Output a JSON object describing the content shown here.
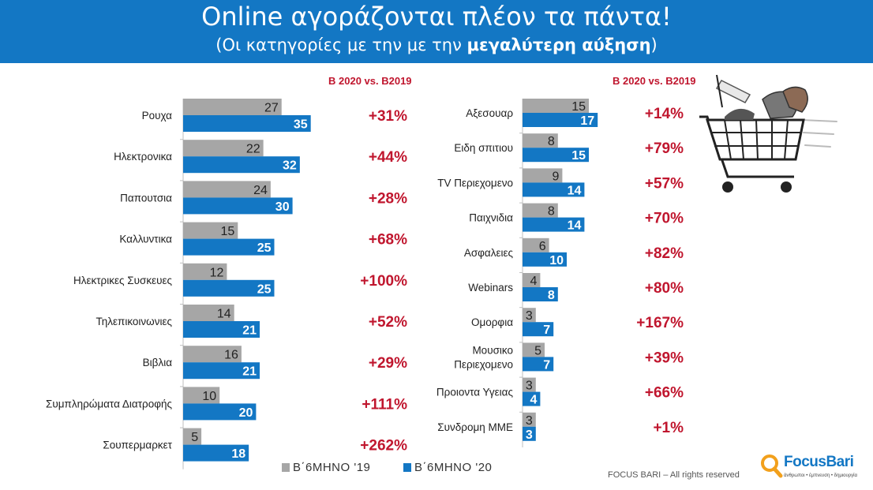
{
  "header": {
    "title": "Online αγοράζονται πλέον τα πάντα!",
    "subtitle_prefix": "(Οι κατηγορίες με την με την",
    "subtitle_bold": "μεγαλύτερη αύξηση",
    "subtitle_suffix": ")",
    "background_color": "#1377c4"
  },
  "chart_data": [
    {
      "type": "bar",
      "orientation": "horizontal",
      "change_header": "Β 2020 vs. Β2019",
      "categories": [
        "Ρουχα",
        "Ηλεκτρονικα",
        "Παπουτσια",
        "Καλλυντικα",
        "Ηλεκτρικες Συσκευες",
        "Τηλεπικοινωνιες",
        "Βιβλια",
        "Συμπληρώματα Διατροφής",
        "Σουπερμαρκετ"
      ],
      "series": [
        {
          "name": "Β΄6ΜΗΝΟ '19",
          "color": "#a6a6a6",
          "values": [
            27,
            22,
            24,
            15,
            12,
            14,
            16,
            10,
            5
          ]
        },
        {
          "name": "Β΄6ΜΗΝΟ '20",
          "color": "#1377c4",
          "values": [
            35,
            32,
            30,
            25,
            25,
            21,
            21,
            20,
            18
          ]
        }
      ],
      "change": [
        "+31%",
        "+44%",
        "+28%",
        "+68%",
        "+100%",
        "+52%",
        "+29%",
        "+111%",
        "+262%"
      ],
      "xlim": [
        0,
        35
      ]
    },
    {
      "type": "bar",
      "orientation": "horizontal",
      "change_header": "Β 2020 vs. Β2019",
      "categories": [
        "Αξεσουαρ",
        "Ειδη σπιτιου",
        "TV Περιεχομενο",
        "Παιχνιδια",
        "Ασφαλειες",
        "Webinars",
        "Ομορφια",
        "Μουσικο|Περιεχομενο",
        "Προιοντα Υγειας",
        "Συνδρομη ΜΜΕ"
      ],
      "series": [
        {
          "name": "Β΄6ΜΗΝΟ '19",
          "color": "#a6a6a6",
          "values": [
            15,
            8,
            9,
            8,
            6,
            4,
            3,
            5,
            3,
            3
          ]
        },
        {
          "name": "Β΄6ΜΗΝΟ '20",
          "color": "#1377c4",
          "values": [
            17,
            15,
            14,
            14,
            10,
            8,
            7,
            7,
            4,
            3
          ]
        }
      ],
      "change": [
        "+14%",
        "+79%",
        "+57%",
        "+70%",
        "+82%",
        "+80%",
        "+167%",
        "+39%",
        "+66%",
        "+1%"
      ],
      "xlim": [
        0,
        17
      ]
    }
  ],
  "legend": {
    "items": [
      {
        "label": "Β΄6ΜΗΝΟ '19",
        "color": "#a6a6a6"
      },
      {
        "label": "Β΄6ΜΗΝΟ '20",
        "color": "#1377c4"
      }
    ]
  },
  "footer": {
    "rights": "FOCUS BARI – All rights reserved",
    "logo_focus": "Focus",
    "logo_bari": "Bari",
    "logo_tagline": "άνθρωποι • έμπνευση • δημιουργία"
  },
  "colors": {
    "change_text": "#c0162e",
    "value_label_grey": "#222222",
    "value_label_blue": "#ffffff"
  }
}
